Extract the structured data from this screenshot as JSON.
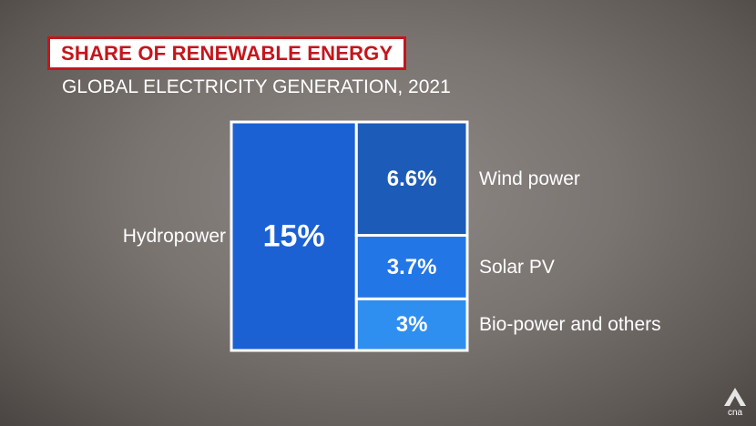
{
  "chart_data": {
    "type": "treemap",
    "title": "SHARE OF RENEWABLE ENERGY",
    "subtitle": "GLOBAL ELECTRICITY GENERATION, 2021",
    "cells": [
      {
        "name": "Hydropower",
        "value": 15,
        "value_label": "15%",
        "color": "#1c61d4"
      },
      {
        "name": "Wind power",
        "value": 6.6,
        "value_label": "6.6%",
        "color": "#1d5bb8"
      },
      {
        "name": "Solar PV",
        "value": 3.7,
        "value_label": "3.7%",
        "color": "#2276e6"
      },
      {
        "name": "Bio-power and others",
        "value": 3,
        "value_label": "3%",
        "color": "#2f8ff0"
      }
    ]
  },
  "logo": {
    "text": "cna"
  },
  "colors": {
    "title_red": "#c4161c",
    "outline": "#ffffff"
  }
}
